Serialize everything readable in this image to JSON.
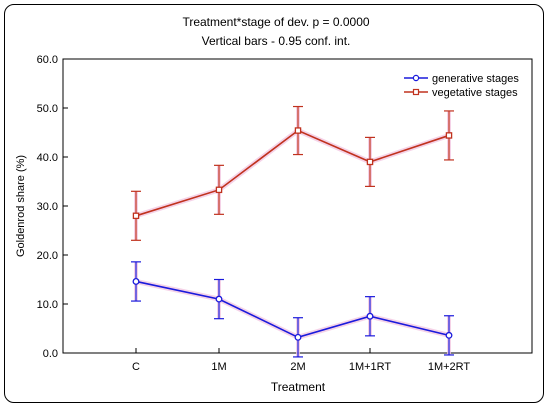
{
  "chart_data": {
    "type": "line",
    "title": "Treatment*stage of dev. p = 0.0000",
    "subtitle": "Vertical bars - 0.95 conf. int.",
    "xlabel": "Treatment",
    "ylabel": "Goldenrod share (%)",
    "categories": [
      "C",
      "1M",
      "2M",
      "1M+1RT",
      "1M+2RT"
    ],
    "ylim": [
      0,
      60
    ],
    "yticks": [
      "0.0",
      "10.0",
      "20.0",
      "30.0",
      "40.0",
      "50.0",
      "60.0"
    ],
    "legend_position": "top-right",
    "grid": false,
    "series": [
      {
        "name": "generative stages",
        "color": "#1a1adc",
        "marker": "circle",
        "values": [
          14.6,
          11.0,
          3.2,
          7.5,
          3.6
        ],
        "ci_low": [
          10.6,
          7.0,
          -0.8,
          3.5,
          -0.4
        ],
        "ci_high": [
          18.6,
          15.0,
          7.2,
          11.5,
          7.6
        ]
      },
      {
        "name": "vegetative stages",
        "color": "#c0321e",
        "marker": "square",
        "values": [
          28.0,
          33.3,
          45.4,
          39.0,
          44.4
        ],
        "ci_low": [
          23.0,
          28.3,
          40.5,
          34.0,
          39.4
        ],
        "ci_high": [
          33.0,
          38.3,
          50.3,
          44.0,
          49.4
        ]
      }
    ]
  }
}
